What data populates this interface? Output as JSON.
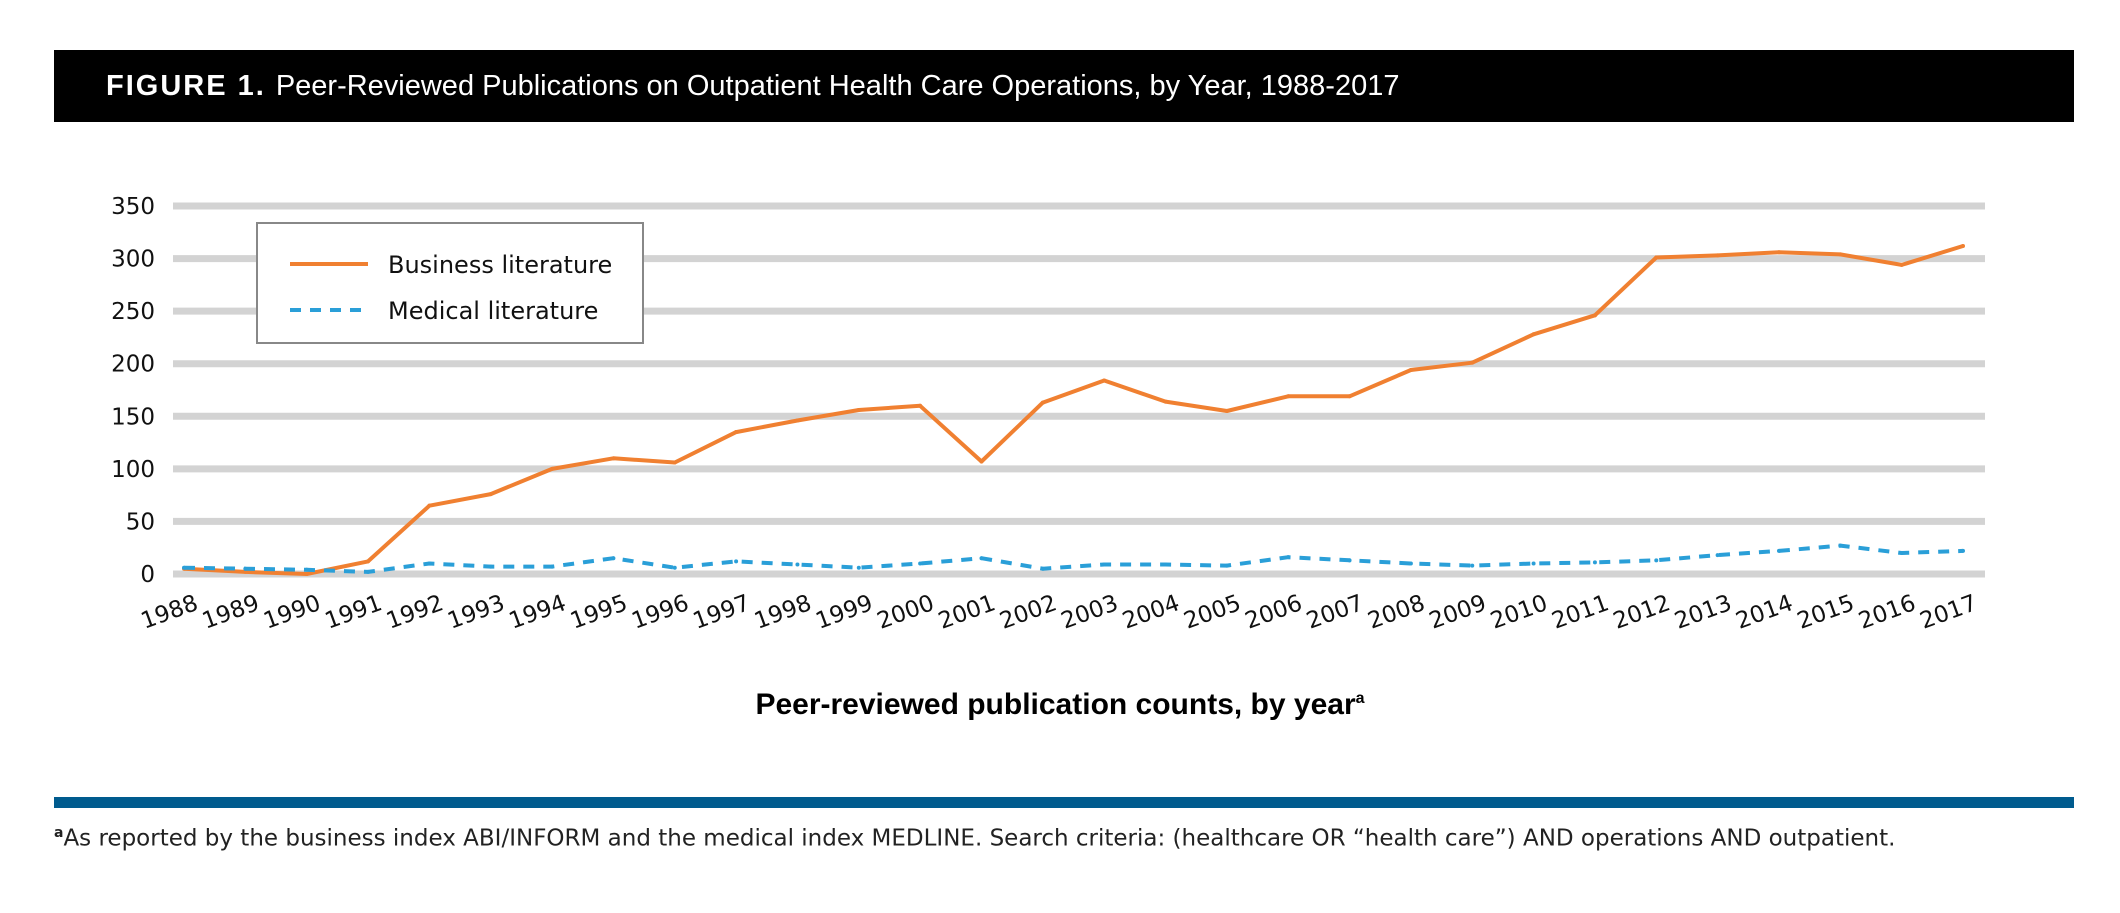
{
  "figure": {
    "label": "FIGURE 1.",
    "title": "Peer-Reviewed Publications on Outpatient Health Care Operations, by Year, 1988-2017"
  },
  "caption": {
    "text": "Peer-reviewed publication counts, by year",
    "superscript": "a"
  },
  "footnote": {
    "marker": "a",
    "text": "As reported by the business index ABI/INFORM and the medical index MEDLINE. Search criteria: (healthcare OR “health care”) AND operations AND outpatient."
  },
  "colors": {
    "banner": "#000000",
    "business": "#F08031",
    "medical": "#2A9FD8",
    "grid": "#D3D3D3",
    "rule": "#005B8E"
  },
  "chart_data": {
    "type": "line",
    "title": "",
    "xlabel": "",
    "ylabel": "",
    "ylim": [
      0,
      350
    ],
    "yticks": [
      0,
      50,
      100,
      150,
      200,
      250,
      300,
      350
    ],
    "grid": true,
    "legend_position": "top-left",
    "categories": [
      "1988",
      "1989",
      "1990",
      "1991",
      "1992",
      "1993",
      "1994",
      "1995",
      "1996",
      "1997",
      "1998",
      "1999",
      "2000",
      "2001",
      "2002",
      "2003",
      "2004",
      "2005",
      "2006",
      "2007",
      "2008",
      "2009",
      "2010",
      "2011",
      "2012",
      "2013",
      "2014",
      "2015",
      "2016",
      "2017"
    ],
    "series": [
      {
        "name": "Business literature",
        "style": "solid",
        "values": [
          5,
          2,
          0,
          12,
          65,
          76,
          100,
          110,
          106,
          135,
          146,
          156,
          160,
          107,
          163,
          184,
          164,
          155,
          169,
          169,
          194,
          201,
          228,
          246,
          301,
          303,
          306,
          304,
          294,
          312
        ]
      },
      {
        "name": "Medical literature",
        "style": "dashed",
        "values": [
          6,
          5,
          4,
          2,
          10,
          7,
          7,
          15,
          6,
          12,
          9,
          6,
          10,
          15,
          5,
          9,
          9,
          8,
          16,
          13,
          10,
          8,
          10,
          11,
          13,
          18,
          22,
          27,
          20,
          22
        ]
      }
    ]
  }
}
